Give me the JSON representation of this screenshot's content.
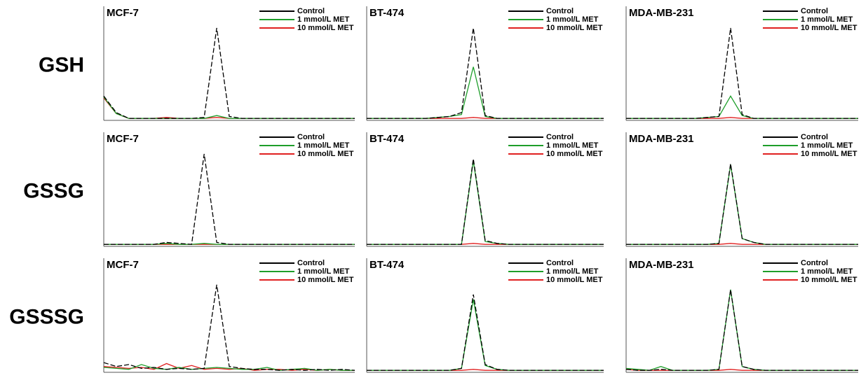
{
  "row_labels": [
    "GSH",
    "GSSG",
    "GSSSG"
  ],
  "chart_data": [
    {
      "type": "line",
      "title": "MCF-7",
      "x": [
        0,
        5,
        10,
        15,
        20,
        25,
        30,
        35,
        40,
        45,
        50,
        55,
        60,
        65,
        70,
        75,
        80,
        85,
        90,
        95,
        100
      ],
      "xlim": [
        0,
        100
      ],
      "ylim": [
        0,
        100
      ],
      "series": [
        {
          "name": "Control",
          "color": "#000000",
          "values": [
            25,
            8,
            2,
            2,
            2,
            2,
            2,
            2,
            3,
            95,
            4,
            2,
            2,
            2,
            2,
            2,
            2,
            2,
            2,
            2,
            2
          ]
        },
        {
          "name": "1 mmol/L MET",
          "color": "#1e9e2a",
          "values": [
            24,
            7,
            2,
            2,
            2,
            2,
            2,
            2,
            2,
            5,
            2,
            2,
            2,
            2,
            2,
            2,
            2,
            2,
            2,
            2,
            2
          ]
        },
        {
          "name": "10 mmol/L MET",
          "color": "#e02020",
          "values": [
            23,
            7,
            2,
            2,
            2,
            3,
            2,
            2,
            2,
            3,
            2,
            2,
            2,
            2,
            2,
            2,
            2,
            2,
            2,
            2,
            2
          ]
        }
      ]
    },
    {
      "type": "line",
      "title": "BT-474",
      "x": [
        0,
        5,
        10,
        15,
        20,
        25,
        30,
        35,
        40,
        45,
        50,
        55,
        60,
        65,
        70,
        75,
        80,
        85,
        90,
        95,
        100
      ],
      "xlim": [
        0,
        100
      ],
      "ylim": [
        0,
        100
      ],
      "series": [
        {
          "name": "Control",
          "color": "#000000",
          "values": [
            2,
            2,
            2,
            2,
            2,
            2,
            3,
            4,
            8,
            95,
            5,
            2,
            2,
            2,
            2,
            2,
            2,
            2,
            2,
            2,
            2
          ]
        },
        {
          "name": "1 mmol/L MET",
          "color": "#1e9e2a",
          "values": [
            2,
            2,
            2,
            2,
            2,
            2,
            3,
            4,
            6,
            55,
            4,
            2,
            2,
            2,
            2,
            2,
            2,
            2,
            2,
            2,
            2
          ]
        },
        {
          "name": "10 mmol/L MET",
          "color": "#e02020",
          "values": [
            2,
            2,
            2,
            2,
            2,
            2,
            2,
            2,
            2,
            3,
            2,
            2,
            2,
            2,
            2,
            2,
            2,
            2,
            2,
            2,
            2
          ]
        }
      ]
    },
    {
      "type": "line",
      "title": "MDA-MB-231",
      "x": [
        0,
        5,
        10,
        15,
        20,
        25,
        30,
        35,
        40,
        45,
        50,
        55,
        60,
        65,
        70,
        75,
        80,
        85,
        90,
        95,
        100
      ],
      "xlim": [
        0,
        100
      ],
      "ylim": [
        0,
        100
      ],
      "series": [
        {
          "name": "Control",
          "color": "#000000",
          "values": [
            2,
            2,
            2,
            2,
            2,
            2,
            2,
            3,
            4,
            95,
            6,
            2,
            2,
            2,
            2,
            2,
            2,
            2,
            2,
            2,
            2
          ]
        },
        {
          "name": "1 mmol/L MET",
          "color": "#1e9e2a",
          "values": [
            2,
            2,
            2,
            2,
            2,
            2,
            2,
            3,
            4,
            25,
            5,
            2,
            2,
            2,
            2,
            2,
            2,
            2,
            2,
            2,
            2
          ]
        },
        {
          "name": "10 mmol/L MET",
          "color": "#e02020",
          "values": [
            2,
            2,
            2,
            2,
            2,
            2,
            2,
            2,
            2,
            3,
            2,
            2,
            2,
            2,
            2,
            2,
            2,
            2,
            2,
            2,
            2
          ]
        }
      ]
    },
    {
      "type": "line",
      "title": "MCF-7",
      "x": [
        0,
        5,
        10,
        15,
        20,
        25,
        30,
        35,
        40,
        45,
        50,
        55,
        60,
        65,
        70,
        75,
        80,
        85,
        90,
        95,
        100
      ],
      "xlim": [
        0,
        100
      ],
      "ylim": [
        0,
        100
      ],
      "series": [
        {
          "name": "Control",
          "color": "#000000",
          "values": [
            2,
            2,
            2,
            2,
            2,
            4,
            3,
            2,
            95,
            4,
            2,
            2,
            2,
            2,
            2,
            2,
            2,
            2,
            2,
            2,
            2
          ]
        },
        {
          "name": "1 mmol/L MET",
          "color": "#1e9e2a",
          "values": [
            2,
            2,
            2,
            2,
            2,
            3,
            2,
            2,
            3,
            2,
            2,
            2,
            2,
            2,
            2,
            2,
            2,
            2,
            2,
            2,
            2
          ]
        },
        {
          "name": "10 mmol/L MET",
          "color": "#e02020",
          "values": [
            2,
            2,
            2,
            2,
            2,
            2,
            2,
            2,
            2,
            2,
            2,
            2,
            2,
            2,
            2,
            2,
            2,
            2,
            2,
            2,
            2
          ]
        }
      ]
    },
    {
      "type": "line",
      "title": "BT-474",
      "x": [
        0,
        5,
        10,
        15,
        20,
        25,
        30,
        35,
        40,
        45,
        50,
        55,
        60,
        65,
        70,
        75,
        80,
        85,
        90,
        95,
        100
      ],
      "xlim": [
        0,
        100
      ],
      "ylim": [
        0,
        100
      ],
      "series": [
        {
          "name": "Control",
          "color": "#000000",
          "values": [
            2,
            2,
            2,
            2,
            2,
            2,
            2,
            2,
            2,
            90,
            6,
            3,
            2,
            2,
            2,
            2,
            2,
            2,
            2,
            2,
            2
          ]
        },
        {
          "name": "1 mmol/L MET",
          "color": "#1e9e2a",
          "values": [
            2,
            2,
            2,
            2,
            2,
            2,
            2,
            2,
            2,
            88,
            5,
            3,
            2,
            2,
            2,
            2,
            2,
            2,
            2,
            2,
            2
          ]
        },
        {
          "name": "10 mmol/L MET",
          "color": "#e02020",
          "values": [
            2,
            2,
            2,
            2,
            2,
            2,
            2,
            2,
            2,
            3,
            2,
            2,
            2,
            2,
            2,
            2,
            2,
            2,
            2,
            2,
            2
          ]
        }
      ]
    },
    {
      "type": "line",
      "title": "MDA-MB-231",
      "x": [
        0,
        5,
        10,
        15,
        20,
        25,
        30,
        35,
        40,
        45,
        50,
        55,
        60,
        65,
        70,
        75,
        80,
        85,
        90,
        95,
        100
      ],
      "xlim": [
        0,
        100
      ],
      "ylim": [
        0,
        100
      ],
      "series": [
        {
          "name": "Control",
          "color": "#000000",
          "values": [
            2,
            2,
            2,
            2,
            2,
            2,
            2,
            2,
            3,
            85,
            8,
            4,
            2,
            2,
            2,
            2,
            2,
            2,
            2,
            2,
            2
          ]
        },
        {
          "name": "1 mmol/L MET",
          "color": "#1e9e2a",
          "values": [
            2,
            2,
            2,
            2,
            2,
            2,
            2,
            2,
            3,
            84,
            8,
            4,
            2,
            2,
            2,
            2,
            2,
            2,
            2,
            2,
            2
          ]
        },
        {
          "name": "10 mmol/L MET",
          "color": "#e02020",
          "values": [
            2,
            2,
            2,
            2,
            2,
            2,
            2,
            2,
            2,
            3,
            2,
            2,
            2,
            2,
            2,
            2,
            2,
            2,
            2,
            2,
            2
          ]
        }
      ]
    },
    {
      "type": "line",
      "title": "MCF-7",
      "x": [
        0,
        5,
        10,
        15,
        20,
        25,
        30,
        35,
        40,
        45,
        50,
        55,
        60,
        65,
        70,
        75,
        80,
        85,
        90,
        95,
        100
      ],
      "xlim": [
        0,
        100
      ],
      "ylim": [
        0,
        100
      ],
      "series": [
        {
          "name": "Control",
          "color": "#000000",
          "values": [
            10,
            6,
            8,
            4,
            5,
            3,
            4,
            3,
            4,
            90,
            6,
            4,
            3,
            3,
            2,
            3,
            2,
            3,
            2,
            3,
            2
          ]
        },
        {
          "name": "1 mmol/L MET",
          "color": "#1e9e2a",
          "values": [
            5,
            4,
            3,
            8,
            4,
            3,
            5,
            3,
            4,
            5,
            4,
            3,
            3,
            5,
            2,
            3,
            4,
            2,
            3,
            2,
            2
          ]
        },
        {
          "name": "10 mmol/L MET",
          "color": "#e02020",
          "values": [
            6,
            5,
            4,
            5,
            3,
            9,
            4,
            7,
            3,
            4,
            3,
            4,
            2,
            3,
            3,
            2,
            3,
            2,
            3,
            2,
            2
          ]
        }
      ]
    },
    {
      "type": "line",
      "title": "BT-474",
      "x": [
        0,
        5,
        10,
        15,
        20,
        25,
        30,
        35,
        40,
        45,
        50,
        55,
        60,
        65,
        70,
        75,
        80,
        85,
        90,
        95,
        100
      ],
      "xlim": [
        0,
        100
      ],
      "ylim": [
        0,
        100
      ],
      "series": [
        {
          "name": "Control",
          "color": "#000000",
          "values": [
            2,
            2,
            2,
            2,
            2,
            2,
            2,
            2,
            4,
            80,
            8,
            3,
            2,
            2,
            2,
            2,
            2,
            2,
            2,
            2,
            2
          ]
        },
        {
          "name": "1 mmol/L MET",
          "color": "#1e9e2a",
          "values": [
            2,
            2,
            2,
            2,
            2,
            2,
            2,
            2,
            4,
            75,
            7,
            3,
            2,
            2,
            2,
            2,
            2,
            2,
            2,
            2,
            2
          ]
        },
        {
          "name": "10 mmol/L MET",
          "color": "#e02020",
          "values": [
            2,
            2,
            2,
            2,
            2,
            2,
            2,
            2,
            2,
            3,
            2,
            2,
            2,
            2,
            2,
            2,
            2,
            2,
            2,
            2,
            2
          ]
        }
      ]
    },
    {
      "type": "line",
      "title": "MDA-MB-231",
      "x": [
        0,
        5,
        10,
        15,
        20,
        25,
        30,
        35,
        40,
        45,
        50,
        55,
        60,
        65,
        70,
        75,
        80,
        85,
        90,
        95,
        100
      ],
      "xlim": [
        0,
        100
      ],
      "ylim": [
        0,
        100
      ],
      "series": [
        {
          "name": "Control",
          "color": "#000000",
          "values": [
            3,
            2,
            2,
            3,
            2,
            2,
            2,
            2,
            3,
            85,
            6,
            3,
            2,
            2,
            2,
            2,
            2,
            2,
            2,
            2,
            2
          ]
        },
        {
          "name": "1 mmol/L MET",
          "color": "#1e9e2a",
          "values": [
            4,
            3,
            2,
            6,
            2,
            2,
            2,
            2,
            3,
            85,
            6,
            3,
            2,
            2,
            2,
            2,
            2,
            2,
            2,
            2,
            2
          ]
        },
        {
          "name": "10 mmol/L MET",
          "color": "#e02020",
          "values": [
            3,
            2,
            2,
            2,
            2,
            2,
            2,
            2,
            2,
            3,
            2,
            2,
            2,
            2,
            2,
            2,
            2,
            2,
            2,
            2,
            2
          ]
        }
      ]
    }
  ]
}
